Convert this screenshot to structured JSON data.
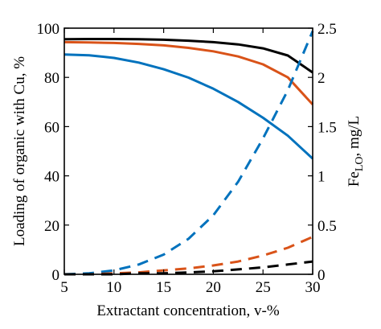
{
  "chart_data": {
    "type": "line",
    "xlabel": "Extractant concentration, v-%",
    "ylabel": "Loading of organic with Cu, %",
    "y2label_main": "Fe",
    "y2label_sub": "LO",
    "y2label_unit": ", mg/L",
    "xlim": [
      5,
      30
    ],
    "ylim": [
      0,
      100
    ],
    "y2lim": [
      0,
      2.5
    ],
    "xticks": [
      5,
      10,
      15,
      20,
      25,
      30
    ],
    "yticks": [
      0,
      20,
      40,
      60,
      80,
      100
    ],
    "y2ticks": [
      "0",
      "0.5",
      "1",
      "1.5",
      "2",
      "2.5"
    ],
    "y2tick_values": [
      0,
      0.5,
      1,
      1.5,
      2,
      2.5
    ],
    "grid": false,
    "legend": "none",
    "x": [
      5,
      7.5,
      10,
      12.5,
      15,
      17.5,
      20,
      22.5,
      25,
      27.5,
      30
    ],
    "series": [
      {
        "axis": "left",
        "style": "solid",
        "color": "#000000",
        "values": [
          95.5,
          95.6,
          95.6,
          95.5,
          95.3,
          94.9,
          94.3,
          93.4,
          91.8,
          88.9,
          82.0
        ]
      },
      {
        "axis": "left",
        "style": "solid",
        "color": "#d95319",
        "values": [
          94.3,
          94.2,
          94.0,
          93.6,
          93.0,
          92.0,
          90.6,
          88.5,
          85.3,
          80.0,
          69.0
        ]
      },
      {
        "axis": "left",
        "style": "solid",
        "color": "#0072bd",
        "values": [
          89.3,
          89.0,
          87.9,
          86.0,
          83.3,
          79.9,
          75.4,
          70.0,
          63.6,
          56.3,
          47.0
        ]
      },
      {
        "axis": "right",
        "style": "dashed",
        "color": "#0072bd",
        "values": [
          0.0,
          0.01,
          0.04,
          0.1,
          0.2,
          0.36,
          0.6,
          0.94,
          1.38,
          1.87,
          2.47
        ]
      },
      {
        "axis": "right",
        "style": "dashed",
        "color": "#d95319",
        "values": [
          0.0,
          0.0,
          0.01,
          0.02,
          0.04,
          0.06,
          0.09,
          0.13,
          0.19,
          0.27,
          0.38
        ]
      },
      {
        "axis": "right",
        "style": "dashed",
        "color": "#000000",
        "values": [
          0.0,
          0.0,
          0.0,
          0.01,
          0.01,
          0.02,
          0.03,
          0.05,
          0.07,
          0.1,
          0.13
        ]
      }
    ]
  }
}
